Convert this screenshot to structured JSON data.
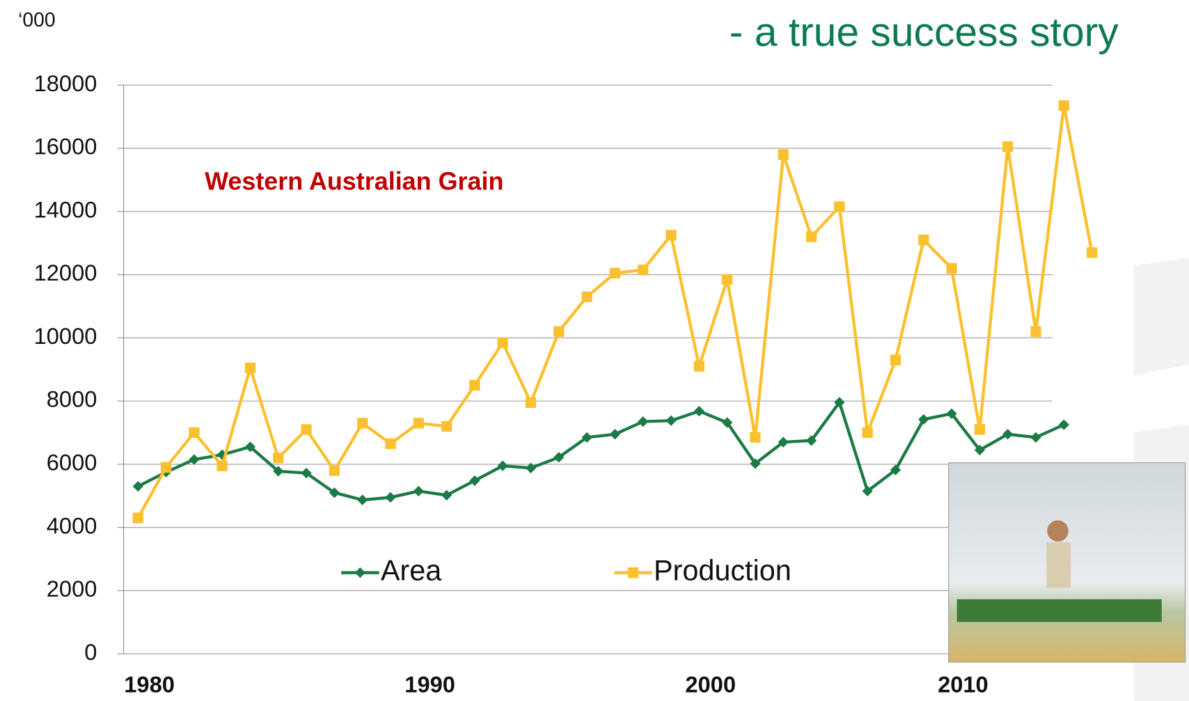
{
  "chart_data": {
    "type": "line",
    "title": "- a true success story",
    "subtitle": "Western Australian Grain",
    "y_unit": "‘000",
    "categories": [
      "1980",
      null,
      null,
      null,
      null,
      null,
      null,
      null,
      null,
      null,
      "1990",
      null,
      null,
      null,
      null,
      null,
      null,
      null,
      null,
      null,
      "2000",
      null,
      null,
      null,
      null,
      null,
      null,
      null,
      null,
      "2010",
      null,
      null,
      null,
      null,
      null
    ],
    "series": [
      {
        "name": "Area",
        "color": "#1b7a45",
        "marker": "diamond",
        "values": [
          5300,
          5750,
          6150,
          6300,
          6550,
          5780,
          5720,
          5100,
          4870,
          4950,
          5150,
          5020,
          5480,
          5950,
          5880,
          6220,
          6850,
          6950,
          7350,
          7380,
          7680,
          7320,
          6020,
          6700,
          6750,
          7960,
          5150,
          5820,
          7420,
          7600,
          6450,
          6950,
          6850,
          7250,
          null
        ]
      },
      {
        "name": "Production",
        "color": "#fbc02d",
        "marker": "square",
        "values": [
          4300,
          5900,
          7000,
          5950,
          9050,
          6200,
          7100,
          5800,
          7300,
          6650,
          7300,
          7200,
          8500,
          9850,
          7950,
          10200,
          11300,
          12050,
          12150,
          13250,
          9100,
          11850,
          6850,
          15800,
          13200,
          14150,
          7000,
          9300,
          13100,
          12200,
          7100,
          16050,
          10200,
          17350,
          12700
        ]
      }
    ],
    "ylim": [
      0,
      18000
    ],
    "yticks": [
      0,
      2000,
      4000,
      6000,
      8000,
      10000,
      12000,
      14000,
      16000,
      18000
    ],
    "grid": true
  }
}
